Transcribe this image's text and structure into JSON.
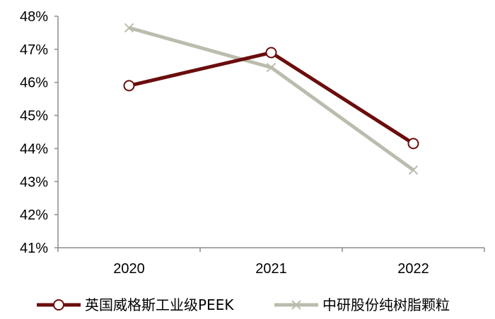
{
  "chart_data": {
    "type": "line",
    "categories": [
      "2020",
      "2021",
      "2022"
    ],
    "y_tick_labels": [
      "41%",
      "42%",
      "43%",
      "44%",
      "45%",
      "46%",
      "47%",
      "48%"
    ],
    "ylim": [
      41,
      48
    ],
    "grid": false,
    "legend_position": "bottom",
    "series": [
      {
        "name": "英国威格斯工业级PEEK",
        "values": [
          45.9,
          46.9,
          44.15
        ],
        "color": "#6b0d0d",
        "marker": "open-circle"
      },
      {
        "name": "中研股份纯树脂颗粒",
        "values": [
          47.65,
          46.45,
          43.35
        ],
        "color": "#bcbcae",
        "marker": "x"
      }
    ]
  }
}
